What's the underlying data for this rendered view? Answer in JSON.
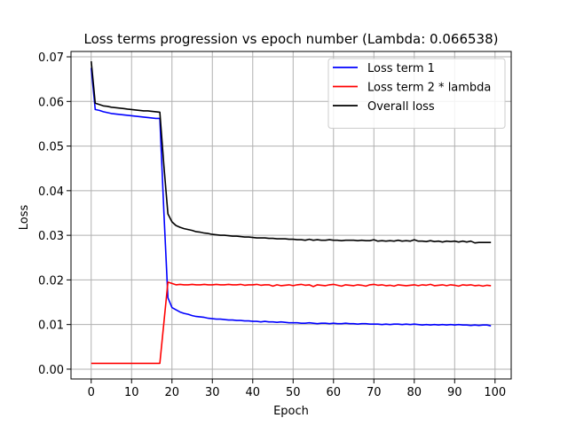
{
  "chart_data": {
    "type": "line",
    "title": "Loss terms progression vs epoch number (Lambda: 0.066538)",
    "xlabel": "Epoch",
    "ylabel": "Loss",
    "xlim": [
      -5,
      104
    ],
    "ylim": [
      -0.0022,
      0.0712
    ],
    "xticks": [
      0,
      10,
      20,
      30,
      40,
      50,
      60,
      70,
      80,
      90,
      100
    ],
    "yticks": [
      0.0,
      0.01,
      0.02,
      0.03,
      0.04,
      0.05,
      0.06,
      0.07
    ],
    "ytick_labels": [
      "0.00",
      "0.01",
      "0.02",
      "0.03",
      "0.04",
      "0.05",
      "0.06",
      "0.07"
    ],
    "grid": true,
    "legend_position": "top-right",
    "x": [
      0,
      1,
      2,
      3,
      4,
      5,
      6,
      7,
      8,
      9,
      10,
      11,
      12,
      13,
      14,
      15,
      16,
      17,
      18,
      19,
      20,
      21,
      22,
      23,
      24,
      25,
      26,
      27,
      28,
      29,
      30,
      31,
      32,
      33,
      34,
      35,
      36,
      37,
      38,
      39,
      40,
      41,
      42,
      43,
      44,
      45,
      46,
      47,
      48,
      49,
      50,
      51,
      52,
      53,
      54,
      55,
      56,
      57,
      58,
      59,
      60,
      61,
      62,
      63,
      64,
      65,
      66,
      67,
      68,
      69,
      70,
      71,
      72,
      73,
      74,
      75,
      76,
      77,
      78,
      79,
      80,
      81,
      82,
      83,
      84,
      85,
      86,
      87,
      88,
      89,
      90,
      91,
      92,
      93,
      94,
      95,
      96,
      97,
      98,
      99
    ],
    "series": [
      {
        "name": "Loss term 1",
        "color": "#0000ff",
        "values": [
          0.0675,
          0.0582,
          0.058,
          0.0577,
          0.0575,
          0.0573,
          0.0572,
          0.0571,
          0.057,
          0.0569,
          0.0568,
          0.0567,
          0.0566,
          0.0565,
          0.0564,
          0.0563,
          0.0562,
          0.0562,
          0.035,
          0.016,
          0.0138,
          0.0133,
          0.0128,
          0.0125,
          0.0123,
          0.012,
          0.0118,
          0.0117,
          0.0116,
          0.0114,
          0.0113,
          0.0112,
          0.0112,
          0.0111,
          0.011,
          0.011,
          0.0109,
          0.0109,
          0.0108,
          0.0108,
          0.0107,
          0.0107,
          0.0106,
          0.0107,
          0.0106,
          0.0106,
          0.0105,
          0.0106,
          0.0105,
          0.0104,
          0.0104,
          0.0104,
          0.0103,
          0.0103,
          0.0104,
          0.0103,
          0.0102,
          0.0103,
          0.0103,
          0.0102,
          0.0103,
          0.0102,
          0.0102,
          0.0103,
          0.0102,
          0.0102,
          0.0101,
          0.0102,
          0.0102,
          0.0101,
          0.0101,
          0.0101,
          0.01,
          0.0101,
          0.01,
          0.0101,
          0.0101,
          0.01,
          0.0101,
          0.01,
          0.0101,
          0.01,
          0.0099,
          0.01,
          0.0099,
          0.01,
          0.0099,
          0.01,
          0.0099,
          0.01,
          0.0099,
          0.01,
          0.0099,
          0.0099,
          0.0098,
          0.0099,
          0.0098,
          0.0099,
          0.0099,
          0.0097
        ]
      },
      {
        "name": "Loss term 2 * lambda",
        "color": "#ff0000",
        "values": [
          0.0013,
          0.0013,
          0.0013,
          0.0013,
          0.0013,
          0.0013,
          0.0013,
          0.0013,
          0.0013,
          0.0013,
          0.0013,
          0.0013,
          0.0013,
          0.0013,
          0.0013,
          0.0013,
          0.0013,
          0.0013,
          0.0105,
          0.0195,
          0.0192,
          0.0189,
          0.019,
          0.0189,
          0.0189,
          0.019,
          0.0189,
          0.0189,
          0.019,
          0.0189,
          0.0189,
          0.019,
          0.0189,
          0.0189,
          0.019,
          0.0189,
          0.0189,
          0.019,
          0.0188,
          0.0189,
          0.0189,
          0.019,
          0.0188,
          0.0189,
          0.0189,
          0.0186,
          0.0189,
          0.0187,
          0.0188,
          0.0189,
          0.0187,
          0.0189,
          0.019,
          0.0188,
          0.0189,
          0.0185,
          0.0189,
          0.0188,
          0.0187,
          0.0189,
          0.019,
          0.0188,
          0.0186,
          0.0189,
          0.0188,
          0.0187,
          0.0189,
          0.0188,
          0.0186,
          0.0189,
          0.019,
          0.0188,
          0.0189,
          0.0187,
          0.0188,
          0.0186,
          0.0189,
          0.0188,
          0.0187,
          0.0188,
          0.0189,
          0.0187,
          0.0189,
          0.0188,
          0.019,
          0.0187,
          0.0188,
          0.0189,
          0.0187,
          0.0189,
          0.0188,
          0.0186,
          0.0189,
          0.0188,
          0.0189,
          0.0187,
          0.0188,
          0.0186,
          0.0188,
          0.0187
        ]
      },
      {
        "name": "Overall loss",
        "color": "#000000",
        "values": [
          0.069,
          0.0596,
          0.0593,
          0.059,
          0.0589,
          0.0587,
          0.0586,
          0.0585,
          0.0584,
          0.0583,
          0.0582,
          0.0581,
          0.058,
          0.0579,
          0.0579,
          0.0578,
          0.0577,
          0.0576,
          0.0455,
          0.0348,
          0.033,
          0.0322,
          0.0318,
          0.0315,
          0.0313,
          0.0311,
          0.0308,
          0.0307,
          0.0305,
          0.0304,
          0.0302,
          0.0301,
          0.03,
          0.03,
          0.0299,
          0.0298,
          0.0298,
          0.0297,
          0.0296,
          0.0296,
          0.0295,
          0.0294,
          0.0294,
          0.0294,
          0.0293,
          0.0293,
          0.0292,
          0.0292,
          0.0292,
          0.0291,
          0.0291,
          0.029,
          0.029,
          0.0289,
          0.0291,
          0.0289,
          0.029,
          0.0289,
          0.0289,
          0.029,
          0.0289,
          0.0289,
          0.0288,
          0.0289,
          0.0289,
          0.0289,
          0.0288,
          0.0289,
          0.0288,
          0.0288,
          0.029,
          0.0287,
          0.0288,
          0.0287,
          0.0288,
          0.0287,
          0.0289,
          0.0287,
          0.0288,
          0.0287,
          0.029,
          0.0287,
          0.0287,
          0.0286,
          0.0288,
          0.0286,
          0.0287,
          0.0285,
          0.0287,
          0.0286,
          0.0287,
          0.0285,
          0.0287,
          0.0285,
          0.0287,
          0.0283,
          0.0284,
          0.0284,
          0.0284,
          0.0284
        ]
      }
    ]
  }
}
